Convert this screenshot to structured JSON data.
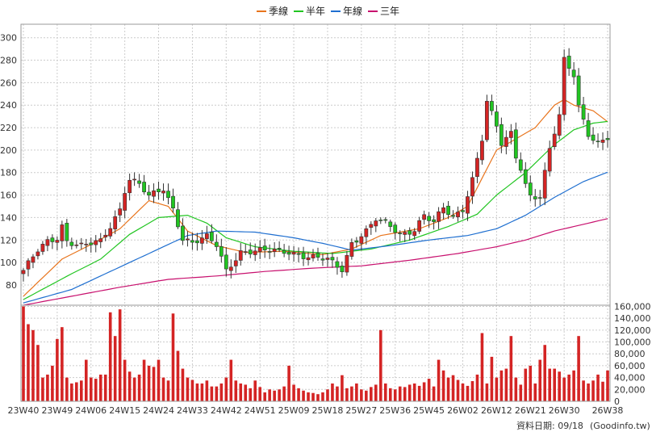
{
  "chart_data": {
    "type": "candlestick",
    "legend": [
      {
        "name": "季線",
        "color": "#e8741c"
      },
      {
        "name": "半年",
        "color": "#21c521"
      },
      {
        "name": "年線",
        "color": "#1f6fd0"
      },
      {
        "name": "三年",
        "color": "#c8106e"
      }
    ],
    "price_axis": {
      "ylim": [
        62,
        312
      ],
      "ticks": [
        80,
        100,
        120,
        140,
        160,
        180,
        200,
        220,
        240,
        260,
        280,
        300
      ]
    },
    "volume_axis": {
      "ylim": [
        0,
        162000
      ],
      "ticks": [
        "0",
        "20,000",
        "40,000",
        "60,000",
        "80,000",
        "100,000",
        "120,000",
        "140,000",
        "160,000"
      ]
    },
    "x_ticks": [
      "23W40",
      "23W49",
      "24W06",
      "24W15",
      "24W24",
      "24W33",
      "24W42",
      "24W51",
      "25W09",
      "25W18",
      "25W27",
      "25W36",
      "25W45",
      "26W02",
      "26W12",
      "26W21",
      "26W30",
      "26W38"
    ],
    "up_color": "#d42424",
    "down_color": "#21c521",
    "volume_color": "#d42424",
    "price_anchors": [
      [
        0,
        93
      ],
      [
        3,
        110
      ],
      [
        5,
        118
      ],
      [
        7,
        122
      ],
      [
        8,
        133
      ],
      [
        9,
        120
      ],
      [
        12,
        115
      ],
      [
        16,
        118
      ],
      [
        18,
        132
      ],
      [
        20,
        148
      ],
      [
        21,
        165
      ],
      [
        22,
        175
      ],
      [
        24,
        170
      ],
      [
        26,
        158
      ],
      [
        29,
        165
      ],
      [
        31,
        148
      ],
      [
        33,
        122
      ],
      [
        35,
        118
      ],
      [
        38,
        122
      ],
      [
        40,
        115
      ],
      [
        42,
        93
      ],
      [
        45,
        110
      ],
      [
        50,
        110
      ],
      [
        55,
        110
      ],
      [
        59,
        105
      ],
      [
        63,
        102
      ],
      [
        66,
        94
      ],
      [
        68,
        118
      ],
      [
        71,
        128
      ],
      [
        73,
        138
      ],
      [
        76,
        132
      ],
      [
        78,
        125
      ],
      [
        81,
        130
      ],
      [
        83,
        142
      ],
      [
        85,
        135
      ],
      [
        87,
        148
      ],
      [
        89,
        140
      ],
      [
        91,
        148
      ],
      [
        93,
        175
      ],
      [
        95,
        210
      ],
      [
        96,
        243
      ],
      [
        98,
        220
      ],
      [
        99,
        205
      ],
      [
        101,
        215
      ],
      [
        102,
        195
      ],
      [
        103,
        185
      ],
      [
        104,
        170
      ],
      [
        105,
        160
      ],
      [
        107,
        158
      ],
      [
        109,
        200
      ],
      [
        111,
        230
      ],
      [
        112,
        280
      ],
      [
        114,
        268
      ],
      [
        115,
        240
      ],
      [
        117,
        215
      ],
      [
        119,
        205
      ],
      [
        121,
        210
      ],
      [
        122,
        200
      ],
      [
        123,
        190
      ],
      [
        124,
        198
      ],
      [
        125,
        193
      ],
      [
        126,
        200
      ]
    ],
    "ma": {
      "季線": [
        [
          0,
          70
        ],
        [
          8,
          103
        ],
        [
          14,
          116
        ],
        [
          20,
          130
        ],
        [
          26,
          155
        ],
        [
          30,
          150
        ],
        [
          34,
          128
        ],
        [
          40,
          115
        ],
        [
          46,
          109
        ],
        [
          54,
          110
        ],
        [
          62,
          107
        ],
        [
          68,
          112
        ],
        [
          74,
          124
        ],
        [
          82,
          130
        ],
        [
          88,
          140
        ],
        [
          92,
          150
        ],
        [
          95,
          175
        ],
        [
          98,
          200
        ],
        [
          102,
          210
        ],
        [
          106,
          220
        ],
        [
          110,
          240
        ],
        [
          112,
          245
        ],
        [
          114,
          240
        ],
        [
          118,
          235
        ],
        [
          122,
          222
        ],
        [
          124,
          212
        ],
        [
          126,
          202
        ]
      ],
      "半年": [
        [
          0,
          67
        ],
        [
          10,
          90
        ],
        [
          16,
          103
        ],
        [
          22,
          125
        ],
        [
          28,
          140
        ],
        [
          34,
          142
        ],
        [
          38,
          135
        ],
        [
          42,
          122
        ],
        [
          48,
          114
        ],
        [
          56,
          110
        ],
        [
          64,
          108
        ],
        [
          72,
          112
        ],
        [
          80,
          120
        ],
        [
          88,
          132
        ],
        [
          94,
          143
        ],
        [
          98,
          160
        ],
        [
          104,
          180
        ],
        [
          110,
          205
        ],
        [
          114,
          218
        ],
        [
          118,
          224
        ],
        [
          122,
          226
        ],
        [
          126,
          222
        ]
      ],
      "年線": [
        [
          0,
          64
        ],
        [
          10,
          76
        ],
        [
          16,
          88
        ],
        [
          22,
          100
        ],
        [
          28,
          112
        ],
        [
          34,
          124
        ],
        [
          40,
          128
        ],
        [
          48,
          127
        ],
        [
          56,
          122
        ],
        [
          62,
          117
        ],
        [
          68,
          111
        ],
        [
          76,
          115
        ],
        [
          84,
          120
        ],
        [
          92,
          124
        ],
        [
          98,
          130
        ],
        [
          104,
          142
        ],
        [
          110,
          158
        ],
        [
          116,
          172
        ],
        [
          122,
          182
        ],
        [
          126,
          188
        ]
      ],
      "三年": [
        [
          0,
          62
        ],
        [
          10,
          70
        ],
        [
          20,
          78
        ],
        [
          30,
          85
        ],
        [
          40,
          88
        ],
        [
          50,
          92
        ],
        [
          60,
          95
        ],
        [
          70,
          97
        ],
        [
          80,
          102
        ],
        [
          90,
          108
        ],
        [
          98,
          114
        ],
        [
          104,
          120
        ],
        [
          110,
          128
        ],
        [
          116,
          134
        ],
        [
          122,
          140
        ],
        [
          126,
          144
        ]
      ]
    },
    "volume": [
      160000,
      130000,
      120000,
      95000,
      40000,
      45000,
      60000,
      105000,
      125000,
      40000,
      30000,
      32000,
      35000,
      70000,
      40000,
      38000,
      45000,
      45000,
      150000,
      110000,
      155000,
      70000,
      50000,
      40000,
      45000,
      70000,
      60000,
      58000,
      70000,
      40000,
      35000,
      148000,
      85000,
      55000,
      40000,
      36000,
      30000,
      30000,
      35000,
      25000,
      25000,
      30000,
      40000,
      70000,
      35000,
      30000,
      28000,
      22000,
      35000,
      24000,
      15000,
      20000,
      18000,
      20000,
      25000,
      60000,
      28000,
      22000,
      18000,
      15000,
      14000,
      12000,
      15000,
      20000,
      30000,
      25000,
      44000,
      22000,
      25000,
      30000,
      20000,
      18000,
      24000,
      28000,
      120000,
      30000,
      22000,
      20000,
      25000,
      24000,
      28000,
      30000,
      26000,
      32000,
      38000,
      25000,
      70000,
      52000,
      40000,
      44000,
      36000,
      30000,
      26000,
      34000,
      45000,
      115000,
      30000,
      75000,
      40000,
      52000,
      55000,
      110000,
      40000,
      28000,
      55000,
      60000,
      30000,
      70000,
      95000,
      55000,
      55000,
      50000,
      40000,
      45000,
      52000,
      110000,
      35000,
      30000,
      35000,
      45000,
      33000,
      52000
    ]
  },
  "footer": {
    "date_label": "資料日期: 09/18",
    "source": "(Goodinfo.tw)"
  }
}
